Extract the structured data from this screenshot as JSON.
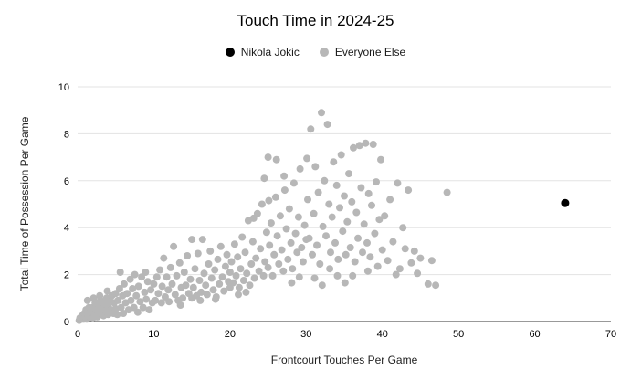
{
  "chart_data": {
    "type": "scatter",
    "title": "Touch Time in 2024-25",
    "xlabel": "Frontcourt Touches Per Game",
    "ylabel": "Total Time of Possession Per Game",
    "xlim": [
      0,
      70
    ],
    "ylim": [
      0,
      10
    ],
    "x_ticks": [
      0,
      10,
      20,
      30,
      40,
      50,
      60,
      70
    ],
    "y_ticks": [
      0,
      2,
      4,
      6,
      8,
      10
    ],
    "grid": "horizontal",
    "legend_position": "top",
    "colors": {
      "gridline": "#e3e3e3",
      "axis": "#333333",
      "tick_text": "#000000",
      "background": "#ffffff"
    },
    "series": [
      {
        "name": "Nikola Jokic",
        "color": "#000000",
        "point_radius": 4.5,
        "points": [
          [
            64,
            5.05
          ]
        ]
      },
      {
        "name": "Everyone Else",
        "color": "#b7b7b7",
        "point_radius": 4,
        "points": [
          [
            0.2,
            0.05
          ],
          [
            0.3,
            0.15
          ],
          [
            0.5,
            0.1
          ],
          [
            0.6,
            0.25
          ],
          [
            0.8,
            0.1
          ],
          [
            0.9,
            0.35
          ],
          [
            1.0,
            0.2
          ],
          [
            1.1,
            0.5
          ],
          [
            1.2,
            0.1
          ],
          [
            1.4,
            0.3
          ],
          [
            1.5,
            0.6
          ],
          [
            1.6,
            0.2
          ],
          [
            1.8,
            0.45
          ],
          [
            2.0,
            0.15
          ],
          [
            2.0,
            0.6
          ],
          [
            2.2,
            0.3
          ],
          [
            2.3,
            0.8
          ],
          [
            2.5,
            0.5
          ],
          [
            2.6,
            0.2
          ],
          [
            2.8,
            0.65
          ],
          [
            3.0,
            0.35
          ],
          [
            3.0,
            0.9
          ],
          [
            3.2,
            0.55
          ],
          [
            3.4,
            0.25
          ],
          [
            3.5,
            0.75
          ],
          [
            3.7,
            0.45
          ],
          [
            3.8,
            1.0
          ],
          [
            4.0,
            0.3
          ],
          [
            4.0,
            0.65
          ],
          [
            4.2,
            0.9
          ],
          [
            4.4,
            0.5
          ],
          [
            4.5,
            1.1
          ],
          [
            4.7,
            0.35
          ],
          [
            4.8,
            0.8
          ],
          [
            5.0,
            0.55
          ],
          [
            5.0,
            1.2
          ],
          [
            1.3,
            0.9
          ],
          [
            2.1,
            1.0
          ],
          [
            2.9,
            1.1
          ],
          [
            3.9,
            1.3
          ],
          [
            5.2,
            0.3
          ],
          [
            5.3,
            0.9
          ],
          [
            5.5,
            1.4
          ],
          [
            5.7,
            0.6
          ],
          [
            5.9,
            1.1
          ],
          [
            6.0,
            0.35
          ],
          [
            6.1,
            1.6
          ],
          [
            6.3,
            0.8
          ],
          [
            6.5,
            1.2
          ],
          [
            6.7,
            0.5
          ],
          [
            6.9,
            1.8
          ],
          [
            7.0,
            0.9
          ],
          [
            7.2,
            1.4
          ],
          [
            7.4,
            0.6
          ],
          [
            7.5,
            2.0
          ],
          [
            7.7,
            1.1
          ],
          [
            7.9,
            0.4
          ],
          [
            8.0,
            1.5
          ],
          [
            8.2,
            0.85
          ],
          [
            8.4,
            1.9
          ],
          [
            8.6,
            0.6
          ],
          [
            8.8,
            1.25
          ],
          [
            9.0,
            0.95
          ],
          [
            9.2,
            1.7
          ],
          [
            9.4,
            0.5
          ],
          [
            9.6,
            1.35
          ],
          [
            9.8,
            0.8
          ],
          [
            10.0,
            1.6
          ],
          [
            5.6,
            2.1
          ],
          [
            8.9,
            2.1
          ],
          [
            10.2,
            0.9
          ],
          [
            10.4,
            1.9
          ],
          [
            10.6,
            1.2
          ],
          [
            10.8,
            2.2
          ],
          [
            11.0,
            0.8
          ],
          [
            11.1,
            1.5
          ],
          [
            11.3,
            2.7
          ],
          [
            11.5,
            1.05
          ],
          [
            11.7,
            1.9
          ],
          [
            11.9,
            1.35
          ],
          [
            12.0,
            0.85
          ],
          [
            12.2,
            2.3
          ],
          [
            12.4,
            1.6
          ],
          [
            12.6,
            3.2
          ],
          [
            12.8,
            1.15
          ],
          [
            13.0,
            1.95
          ],
          [
            13.2,
            0.9
          ],
          [
            13.4,
            2.5
          ],
          [
            13.6,
            1.45
          ],
          [
            13.8,
            1.0
          ],
          [
            14.0,
            2.1
          ],
          [
            14.2,
            1.55
          ],
          [
            14.4,
            2.8
          ],
          [
            14.6,
            1.2
          ],
          [
            14.8,
            1.8
          ],
          [
            15.0,
            1.0
          ],
          [
            15.0,
            3.5
          ],
          [
            13.5,
            0.7
          ],
          [
            15.2,
            1.45
          ],
          [
            15.4,
            2.25
          ],
          [
            15.6,
            1.1
          ],
          [
            15.8,
            2.9
          ],
          [
            16.0,
            1.75
          ],
          [
            16.2,
            1.25
          ],
          [
            16.4,
            3.5
          ],
          [
            16.6,
            2.05
          ],
          [
            16.8,
            1.55
          ],
          [
            17.0,
            1.15
          ],
          [
            17.2,
            2.45
          ],
          [
            17.4,
            3.0
          ],
          [
            17.6,
            1.85
          ],
          [
            17.8,
            1.35
          ],
          [
            18.0,
            2.2
          ],
          [
            18.2,
            1.05
          ],
          [
            18.4,
            2.65
          ],
          [
            18.6,
            1.6
          ],
          [
            18.8,
            3.2
          ],
          [
            19.0,
            1.9
          ],
          [
            19.2,
            1.3
          ],
          [
            19.4,
            2.35
          ],
          [
            19.6,
            2.85
          ],
          [
            19.8,
            1.7
          ],
          [
            20.0,
            1.45
          ],
          [
            20.0,
            2.1
          ],
          [
            16.1,
            0.9
          ],
          [
            18.1,
            0.95
          ],
          [
            20.2,
            2.55
          ],
          [
            20.4,
            1.65
          ],
          [
            20.6,
            3.3
          ],
          [
            20.8,
            1.95
          ],
          [
            21.0,
            2.75
          ],
          [
            21.2,
            1.45
          ],
          [
            21.4,
            2.25
          ],
          [
            21.6,
            3.6
          ],
          [
            21.8,
            1.75
          ],
          [
            22.0,
            2.95
          ],
          [
            22.2,
            2.05
          ],
          [
            22.4,
            4.3
          ],
          [
            22.6,
            1.55
          ],
          [
            22.8,
            2.45
          ],
          [
            23.0,
            3.4
          ],
          [
            23.2,
            1.85
          ],
          [
            23.4,
            2.7
          ],
          [
            23.6,
            4.6
          ],
          [
            23.8,
            2.15
          ],
          [
            24.0,
            3.1
          ],
          [
            24.2,
            5.0
          ],
          [
            24.4,
            1.95
          ],
          [
            24.6,
            2.55
          ],
          [
            24.8,
            3.8
          ],
          [
            25.0,
            7.0
          ],
          [
            25.0,
            2.3
          ],
          [
            24.5,
            6.1
          ],
          [
            21.1,
            1.15
          ],
          [
            22.1,
            1.25
          ],
          [
            23.1,
            4.4
          ],
          [
            25.2,
            3.25
          ],
          [
            25.4,
            4.2
          ],
          [
            25.6,
            1.95
          ],
          [
            25.8,
            2.85
          ],
          [
            26.0,
            5.3
          ],
          [
            26.2,
            3.65
          ],
          [
            26.4,
            2.45
          ],
          [
            26.6,
            4.5
          ],
          [
            26.8,
            3.05
          ],
          [
            27.0,
            2.15
          ],
          [
            27.2,
            5.6
          ],
          [
            27.4,
            3.95
          ],
          [
            27.6,
            2.65
          ],
          [
            27.8,
            4.8
          ],
          [
            28.0,
            3.35
          ],
          [
            28.2,
            2.25
          ],
          [
            28.4,
            5.9
          ],
          [
            28.6,
            3.75
          ],
          [
            28.8,
            2.95
          ],
          [
            29.0,
            4.45
          ],
          [
            29.2,
            6.5
          ],
          [
            29.4,
            3.15
          ],
          [
            29.6,
            2.55
          ],
          [
            29.8,
            4.1
          ],
          [
            30.0,
            3.5
          ],
          [
            26.1,
            6.9
          ],
          [
            27.1,
            6.2
          ],
          [
            28.1,
            1.65
          ],
          [
            29.1,
            1.9
          ],
          [
            25.1,
            5.15
          ],
          [
            30.2,
            5.2
          ],
          [
            30.4,
            3.55
          ],
          [
            30.6,
            8.2
          ],
          [
            30.8,
            2.85
          ],
          [
            31.0,
            4.6
          ],
          [
            31.2,
            6.6
          ],
          [
            31.4,
            3.25
          ],
          [
            31.6,
            5.5
          ],
          [
            31.8,
            2.45
          ],
          [
            32.0,
            8.9
          ],
          [
            32.2,
            4.05
          ],
          [
            32.4,
            6.0
          ],
          [
            32.6,
            3.65
          ],
          [
            32.8,
            8.4
          ],
          [
            33.0,
            5.0
          ],
          [
            33.2,
            2.95
          ],
          [
            33.4,
            4.45
          ],
          [
            33.6,
            6.8
          ],
          [
            33.8,
            3.35
          ],
          [
            34.0,
            5.8
          ],
          [
            34.2,
            2.65
          ],
          [
            34.4,
            4.85
          ],
          [
            34.6,
            7.1
          ],
          [
            34.8,
            3.85
          ],
          [
            35.0,
            5.35
          ],
          [
            31.1,
            1.85
          ],
          [
            32.1,
            1.55
          ],
          [
            33.1,
            2.25
          ],
          [
            34.1,
            1.95
          ],
          [
            30.1,
            6.95
          ],
          [
            35.2,
            2.85
          ],
          [
            35.4,
            4.25
          ],
          [
            35.6,
            6.3
          ],
          [
            35.8,
            3.15
          ],
          [
            36.0,
            5.1
          ],
          [
            36.2,
            7.4
          ],
          [
            36.4,
            2.55
          ],
          [
            36.6,
            4.65
          ],
          [
            36.8,
            3.55
          ],
          [
            37.0,
            7.5
          ],
          [
            37.2,
            5.7
          ],
          [
            37.4,
            2.95
          ],
          [
            37.6,
            4.15
          ],
          [
            37.8,
            7.6
          ],
          [
            38.0,
            3.35
          ],
          [
            38.2,
            5.45
          ],
          [
            38.4,
            2.75
          ],
          [
            38.6,
            4.95
          ],
          [
            38.8,
            7.55
          ],
          [
            39.0,
            3.75
          ],
          [
            39.2,
            5.95
          ],
          [
            39.4,
            2.35
          ],
          [
            39.6,
            4.35
          ],
          [
            39.8,
            6.9
          ],
          [
            40.0,
            3.05
          ],
          [
            36.1,
            1.95
          ],
          [
            38.1,
            2.15
          ],
          [
            35.1,
            1.65
          ],
          [
            40.3,
            4.5
          ],
          [
            40.7,
            2.6
          ],
          [
            41.0,
            5.2
          ],
          [
            41.4,
            3.4
          ],
          [
            41.8,
            2.0
          ],
          [
            42.0,
            5.9
          ],
          [
            42.3,
            2.25
          ],
          [
            42.7,
            4.0
          ],
          [
            43.0,
            3.1
          ],
          [
            43.4,
            5.6
          ],
          [
            43.8,
            2.5
          ],
          [
            44.2,
            3.0
          ],
          [
            44.6,
            2.05
          ],
          [
            45.0,
            2.7
          ],
          [
            46.0,
            1.6
          ],
          [
            46.5,
            2.6
          ],
          [
            47.0,
            1.55
          ],
          [
            48.5,
            5.5
          ]
        ]
      }
    ]
  }
}
